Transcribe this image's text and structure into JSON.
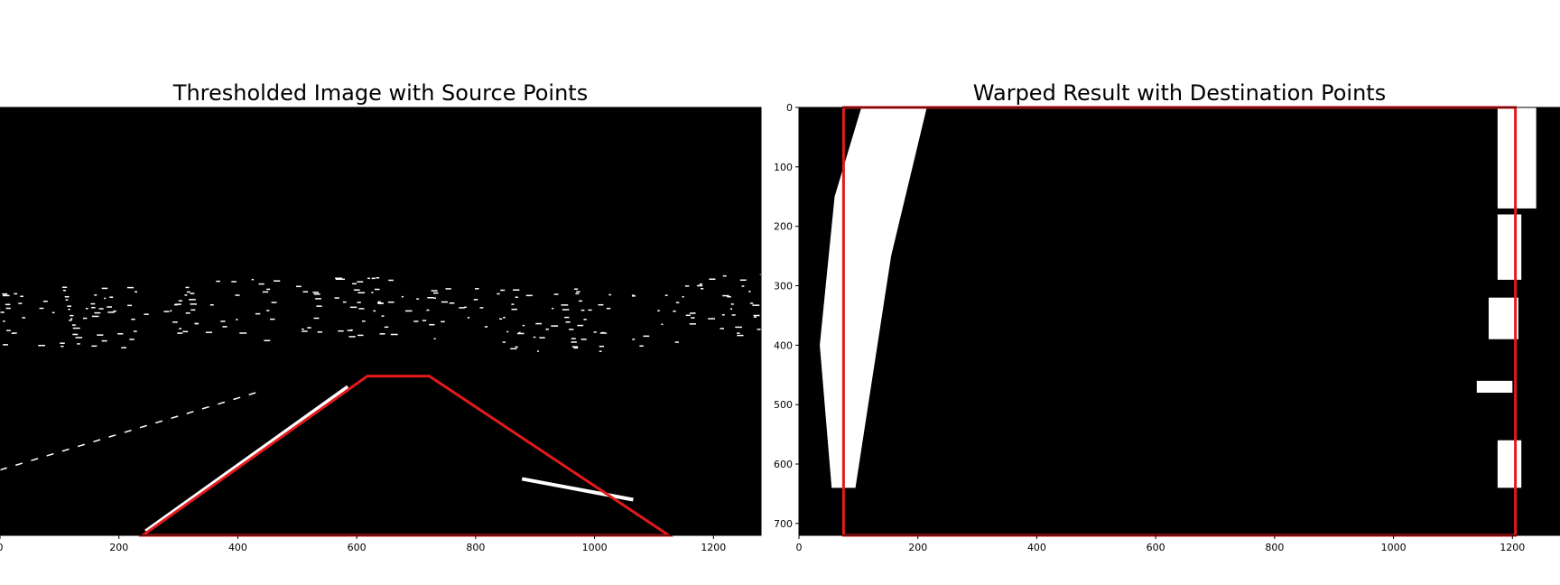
{
  "figure": {
    "background": "#ffffff"
  },
  "chart_data": [
    {
      "type": "image",
      "title": "Thresholded Image with Source Points",
      "xlabel": "",
      "ylabel": "",
      "xlim": [
        0,
        1280
      ],
      "ylim": [
        720,
        0
      ],
      "x_ticks": [
        0,
        200,
        400,
        600,
        800,
        1000,
        1200
      ],
      "x_tick_labels": [
        "0",
        "200",
        "400",
        "600",
        "800",
        "1000",
        "1200"
      ],
      "y_ticks": [],
      "grid": false,
      "polygon": {
        "color": "#e31a1c",
        "points": [
          [
            240,
            720
          ],
          [
            618,
            452
          ],
          [
            722,
            452
          ],
          [
            1125,
            720
          ]
        ]
      },
      "lane_lines": [
        [
          [
            245,
            713
          ],
          [
            585,
            470
          ]
        ],
        [
          [
            878,
            625
          ],
          [
            1065,
            660
          ]
        ]
      ]
    },
    {
      "type": "image",
      "title": "Warped Result with Destination Points",
      "xlabel": "",
      "ylabel": "",
      "xlim": [
        0,
        1280
      ],
      "ylim": [
        720,
        0
      ],
      "x_ticks": [
        0,
        200,
        400,
        600,
        800,
        1000,
        1200
      ],
      "x_tick_labels": [
        "0",
        "200",
        "400",
        "600",
        "800",
        "1000",
        "1200"
      ],
      "y_ticks": [
        0,
        100,
        200,
        300,
        400,
        500,
        600,
        700
      ],
      "y_tick_labels": [
        "0",
        "100",
        "200",
        "300",
        "400",
        "500",
        "600",
        "700"
      ],
      "grid": false,
      "polygon": {
        "color": "#e31a1c",
        "points": [
          [
            75,
            0
          ],
          [
            75,
            720
          ],
          [
            1205,
            720
          ],
          [
            1205,
            0
          ]
        ]
      }
    }
  ]
}
